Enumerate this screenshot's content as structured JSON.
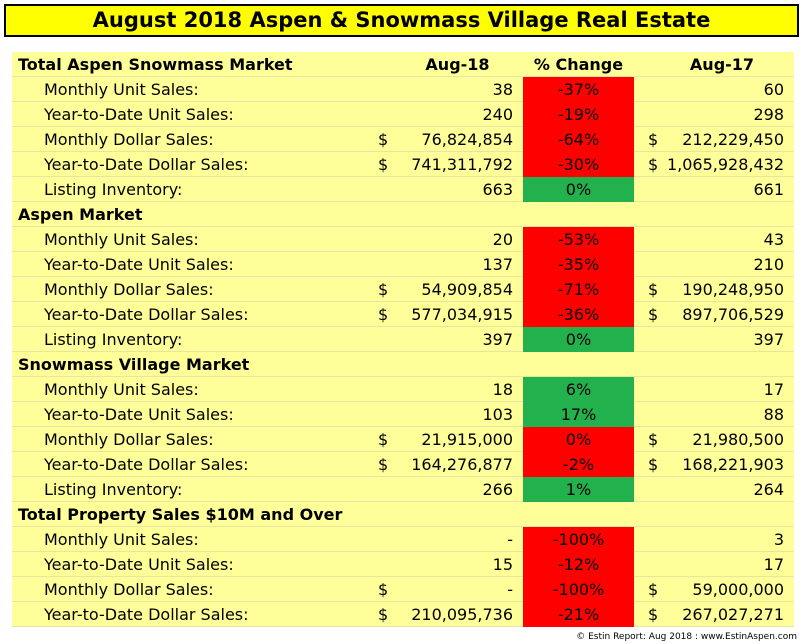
{
  "title": "August 2018 Aspen & Snowmass Village Real Estate",
  "headers": {
    "col18": "Aug-18",
    "pct": "% Change",
    "col17": "Aug-17"
  },
  "sections": [
    {
      "name": "Total Aspen Snowmass Market",
      "rows": [
        {
          "label": "Monthly Unit Sales:",
          "dollar": false,
          "aug18": "38",
          "pct": "-37%",
          "status": "neg",
          "aug17": "60"
        },
        {
          "label": "Year-to-Date Unit Sales:",
          "dollar": false,
          "aug18": "240",
          "pct": "-19%",
          "status": "neg",
          "aug17": "298"
        },
        {
          "label": "Monthly Dollar Sales:",
          "dollar": true,
          "aug18": "76,824,854",
          "pct": "-64%",
          "status": "neg",
          "aug17": "212,229,450"
        },
        {
          "label": "Year-to-Date Dollar Sales:",
          "dollar": true,
          "aug18": "741,311,792",
          "pct": "-30%",
          "status": "neg",
          "aug17": "1,065,928,432"
        },
        {
          "label": "Listing Inventory:",
          "dollar": false,
          "aug18": "663",
          "pct": "0%",
          "status": "pos",
          "aug17": "661"
        }
      ]
    },
    {
      "name": "Aspen Market",
      "rows": [
        {
          "label": "Monthly Unit Sales:",
          "dollar": false,
          "aug18": "20",
          "pct": "-53%",
          "status": "neg",
          "aug17": "43"
        },
        {
          "label": "Year-to-Date Unit Sales:",
          "dollar": false,
          "aug18": "137",
          "pct": "-35%",
          "status": "neg",
          "aug17": "210"
        },
        {
          "label": "Monthly Dollar Sales:",
          "dollar": true,
          "aug18": "54,909,854",
          "pct": "-71%",
          "status": "neg",
          "aug17": "190,248,950"
        },
        {
          "label": "Year-to-Date Dollar Sales:",
          "dollar": true,
          "aug18": "577,034,915",
          "pct": "-36%",
          "status": "neg",
          "aug17": "897,706,529"
        },
        {
          "label": "Listing Inventory:",
          "dollar": false,
          "aug18": "397",
          "pct": "0%",
          "status": "pos",
          "aug17": "397"
        }
      ]
    },
    {
      "name": "Snowmass Village Market",
      "rows": [
        {
          "label": "Monthly Unit Sales:",
          "dollar": false,
          "aug18": "18",
          "pct": "6%",
          "status": "pos",
          "aug17": "17"
        },
        {
          "label": "Year-to-Date Unit Sales:",
          "dollar": false,
          "aug18": "103",
          "pct": "17%",
          "status": "pos",
          "aug17": "88"
        },
        {
          "label": "Monthly Dollar Sales:",
          "dollar": true,
          "aug18": "21,915,000",
          "pct": "0%",
          "status": "neg",
          "aug17": "21,980,500"
        },
        {
          "label": "Year-to-Date Dollar Sales:",
          "dollar": true,
          "aug18": "164,276,877",
          "pct": "-2%",
          "status": "neg",
          "aug17": "168,221,903"
        },
        {
          "label": "Listing Inventory:",
          "dollar": false,
          "aug18": "266",
          "pct": "1%",
          "status": "pos",
          "aug17": "264"
        }
      ]
    },
    {
      "name": "Total Property Sales $10M and Over",
      "rows": [
        {
          "label": "Monthly Unit Sales:",
          "dollar": false,
          "aug18": "-",
          "pct": "-100%",
          "status": "neg",
          "aug17": "3"
        },
        {
          "label": "Year-to-Date Unit Sales:",
          "dollar": false,
          "aug18": "15",
          "pct": "-12%",
          "status": "neg",
          "aug17": "17"
        },
        {
          "label": "Monthly Dollar Sales:",
          "dollar": true,
          "aug18": "-",
          "pct": "-100%",
          "status": "neg",
          "aug17": "59,000,000"
        },
        {
          "label": "Year-to-Date Dollar Sales:",
          "dollar": true,
          "aug18": "210,095,736",
          "pct": "-21%",
          "status": "neg",
          "aug17": "267,027,271"
        }
      ]
    }
  ],
  "dollar_sign": "$",
  "credit": "© Estin Report: Aug 2018 : www.EstinAspen.com",
  "colors": {
    "title_bg": "#ffff00",
    "table_bg": "#ffff99",
    "negative": "#ff0000",
    "positive": "#22b14c"
  }
}
